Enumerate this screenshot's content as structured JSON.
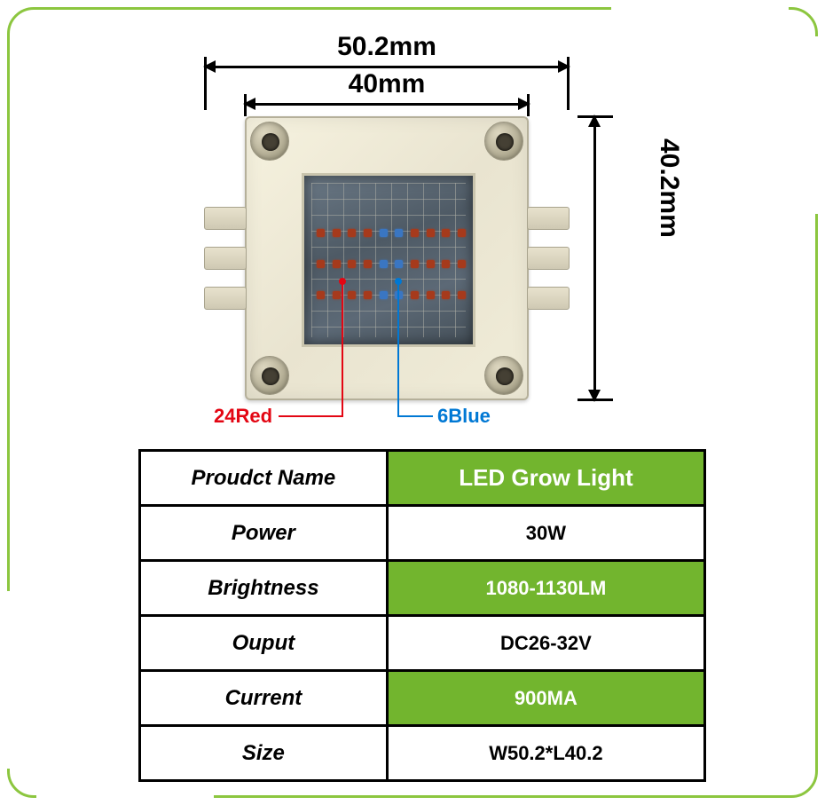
{
  "dimensions": {
    "outer_width": "50.2mm",
    "inner_width": "40mm",
    "height": "40.2mm"
  },
  "callouts": {
    "red": "24Red",
    "blue": "6Blue"
  },
  "chip": {
    "led_rows": 3,
    "leds_per_row": 10,
    "blue_positions_per_row": [
      4,
      5
    ],
    "colors": {
      "body": "#e9e4d0",
      "die": "#55616c",
      "led_red": "#a63a1c",
      "led_blue": "#3a76c2"
    }
  },
  "colors": {
    "frame": "#8cc63f",
    "table_green": "#72b52e",
    "callout_red": "#e30613",
    "callout_blue": "#0078d4"
  },
  "spec": {
    "rows": [
      {
        "label": "Proudct Name",
        "value": "LED Grow Light",
        "green": true
      },
      {
        "label": "Power",
        "value": "30W",
        "green": false
      },
      {
        "label": "Brightness",
        "value": "1080-1130LM",
        "green": true
      },
      {
        "label": "Ouput",
        "value": "DC26-32V",
        "green": false
      },
      {
        "label": "Current",
        "value": "900MA",
        "green": true
      },
      {
        "label": "Size",
        "value": "W50.2*L40.2",
        "green": false
      }
    ]
  }
}
